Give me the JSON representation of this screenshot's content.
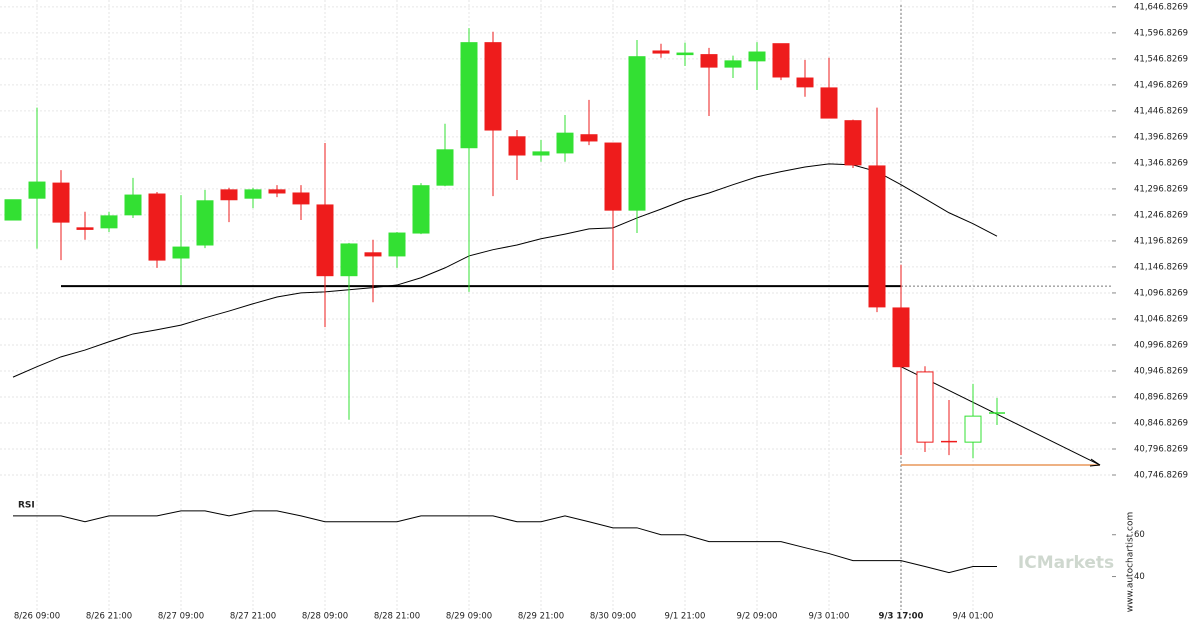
{
  "chart_data": {
    "type": "candlestick",
    "categories": [
      null,
      "8/26 09:00",
      null,
      null,
      "8/26 21:00",
      null,
      null,
      "8/27 09:00",
      null,
      null,
      "8/27 21:00",
      null,
      null,
      "8/28 09:00",
      null,
      null,
      "8/28 21:00",
      null,
      null,
      "8/29 09:00",
      null,
      null,
      "8/29 21:00",
      null,
      null,
      "8/30 09:00",
      null,
      null,
      "9/1 21:00",
      null,
      null,
      "9/2 09:00",
      null,
      null,
      "9/3 01:00",
      null,
      null,
      "9/3 17:00",
      null,
      null,
      "9/4 01:00",
      null
    ],
    "current_category": "9/3 17:00",
    "open": [
      41237,
      41279,
      41308,
      41222,
      41222,
      41247,
      41287,
      41164,
      41189,
      41295,
      41279,
      41295,
      41289,
      41266,
      41130,
      41174,
      41168,
      41212,
      41304,
      41376,
      41578,
      41397,
      41362,
      41366,
      41401,
      41385,
      41256,
      41562,
      41555,
      41555,
      41531,
      41543,
      41576,
      41510,
      41491,
      41428,
      41341,
      41068,
      40945,
      40812,
      40810,
      40866
    ],
    "high": [
      41276,
      41453,
      41333,
      41253,
      41253,
      41318,
      41291,
      41285,
      41295,
      41299,
      41299,
      41304,
      41304,
      41385,
      41193,
      41199,
      41214,
      41308,
      41422,
      41606,
      41599,
      41410,
      41391,
      41439,
      41468,
      41385,
      41583,
      41576,
      41578,
      41568,
      41553,
      41579,
      41576,
      41545,
      41549,
      41430,
      41453,
      41151,
      40956,
      40891,
      40922,
      40895
    ],
    "low": [
      41237,
      41182,
      41160,
      41199,
      41214,
      41241,
      41145,
      41112,
      41183,
      41233,
      41260,
      41281,
      41237,
      41031,
      40853,
      41079,
      41145,
      41210,
      41302,
      41099,
      41283,
      41314,
      41349,
      41349,
      41381,
      41141,
      41212,
      41549,
      41533,
      41437,
      41510,
      41487,
      41506,
      41474,
      41433,
      41337,
      41060,
      40785,
      40791,
      40785,
      40779,
      40843
    ],
    "close": [
      41276,
      41310,
      41233,
      41219,
      41245,
      41285,
      41160,
      41185,
      41274,
      41276,
      41295,
      41289,
      41268,
      41130,
      41191,
      41168,
      41212,
      41303,
      41372,
      41578,
      41410,
      41362,
      41368,
      41404,
      41389,
      41256,
      41551,
      41558,
      41558,
      41531,
      41543,
      41560,
      41512,
      41493,
      41433,
      41343,
      41070,
      40955,
      40810,
      40810,
      40860,
      40866
    ],
    "up_color": "#33e033",
    "down_color": "#ee1c1c",
    "moving_average": {
      "color": "#000000",
      "values": [
        40935,
        40955,
        40974,
        40987,
        41003,
        41018,
        41026,
        41035,
        41049,
        41062,
        41076,
        41089,
        41097,
        41099,
        41103,
        41107,
        41112,
        41126,
        41145,
        41168,
        41180,
        41189,
        41201,
        41210,
        41220,
        41222,
        41241,
        41258,
        41276,
        41289,
        41305,
        41320,
        41330,
        41339,
        41345,
        41343,
        41330,
        41305,
        41278,
        41251,
        41230,
        41206
      ]
    },
    "support_level": 41110,
    "trend_start": 40955,
    "target_level": 40766,
    "target_color": "#e8975a",
    "ylim": [
      40718,
      41660
    ],
    "yticks": [
      {
        "value": 41646.8269,
        "label": "41,646.8269"
      },
      {
        "value": 41596.8269,
        "label": "41,596.8269"
      },
      {
        "value": 41546.8269,
        "label": "41,546.8269"
      },
      {
        "value": 41496.8269,
        "label": "41,496.8269"
      },
      {
        "value": 41446.8269,
        "label": "41,446.8269"
      },
      {
        "value": 41396.8269,
        "label": "41,396.8269"
      },
      {
        "value": 41346.8269,
        "label": "41,346.8269"
      },
      {
        "value": 41296.8269,
        "label": "41,296.8269"
      },
      {
        "value": 41246.8269,
        "label": "41,246.8269"
      },
      {
        "value": 41196.8269,
        "label": "41,196.8269"
      },
      {
        "value": 41146.8269,
        "label": "41,146.8269"
      },
      {
        "value": 41096.8269,
        "label": "41,096.8269"
      },
      {
        "value": 41046.8269,
        "label": "41,046.8269"
      },
      {
        "value": 40996.8269,
        "label": "40,996.8269"
      },
      {
        "value": 40946.8269,
        "label": "40,946.8269"
      },
      {
        "value": 40896.8269,
        "label": "40,896.8269"
      },
      {
        "value": 40846.8269,
        "label": "40,846.8269"
      },
      {
        "value": 40796.8269,
        "label": "40,796.8269"
      },
      {
        "value": 40746.8269,
        "label": "40,746.8269"
      }
    ],
    "grid": true,
    "rsi": {
      "label": "RSI",
      "color": "#000000",
      "ylim": [
        24,
        79
      ],
      "yticks": [
        60,
        40
      ],
      "values": [
        69,
        69,
        69,
        66.2,
        69,
        69,
        69,
        71.4,
        71.4,
        69,
        71.4,
        71.4,
        69,
        66.2,
        66.2,
        66.2,
        66.2,
        69,
        69,
        69,
        69,
        66.2,
        66.2,
        69,
        66.2,
        63.3,
        63.3,
        60,
        60,
        56.7,
        56.7,
        56.7,
        56.7,
        53.8,
        51,
        47.6,
        47.6,
        47.6,
        44.8,
        41.9,
        44.8,
        44.8
      ]
    },
    "watermark": "www.autochartist.com",
    "brand": "ICMarkets"
  }
}
